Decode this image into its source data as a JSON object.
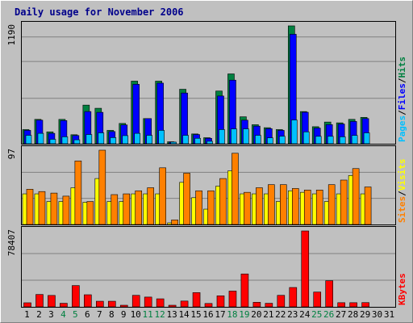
{
  "chart_data": {
    "title": "Daily usage for November 2006",
    "type": "bar",
    "days": [
      "1",
      "2",
      "3",
      "4",
      "5",
      "6",
      "7",
      "8",
      "9",
      "10",
      "11",
      "12",
      "13",
      "14",
      "15",
      "16",
      "17",
      "18",
      "19",
      "20",
      "21",
      "22",
      "23",
      "24",
      "25",
      "26",
      "27",
      "28",
      "29",
      "30",
      "31"
    ],
    "weekend_days": [
      "4",
      "5",
      "11",
      "12",
      "18",
      "19",
      "25",
      "26"
    ],
    "panels": [
      {
        "id": "hits-files-pages",
        "ymax_label": "1190",
        "ymax": 1190,
        "legend": [
          {
            "text": "Pages",
            "color": "#00c0ff"
          },
          {
            "text": "/",
            "color": "#000000"
          },
          {
            "text": "Files",
            "color": "#0000ff"
          },
          {
            "text": "/",
            "color": "#000000"
          },
          {
            "text": "Hits",
            "color": "#008040"
          }
        ],
        "series": [
          {
            "key": "hits",
            "color": "#008040",
            "values": [
              143,
              246,
              120,
              246,
              91,
              390,
              358,
              135,
              205,
              632,
              254,
              632,
              20,
              550,
              99,
              61,
              532,
              705,
              272,
              192,
              162,
              143,
              1190,
              325,
              172,
              219,
              211,
              246,
              266,
              0,
              0
            ]
          },
          {
            "key": "files",
            "color": "#0000ff",
            "values": [
              135,
              238,
              105,
              234,
              83,
              325,
              317,
              123,
              190,
              600,
              254,
              612,
              12,
              512,
              93,
              55,
              482,
              642,
              238,
              178,
              152,
              135,
              1105,
              318,
              158,
              193,
              199,
              225,
              254,
              0,
              0
            ]
          },
          {
            "key": "pages",
            "color": "#00c0ff",
            "values": [
              85,
              105,
              45,
              70,
              40,
              93,
              110,
              62,
              82,
              105,
              85,
              135,
              8,
              85,
              55,
              25,
              143,
              150,
              150,
              85,
              60,
              76,
              240,
              120,
              75,
              75,
              70,
              84,
              110,
              0,
              0
            ]
          }
        ]
      },
      {
        "id": "visits-sites",
        "ymax_label": "97",
        "ymax": 97,
        "legend": [
          {
            "text": "Sites",
            "color": "#ff8000"
          },
          {
            "text": "/",
            "color": "#000000"
          },
          {
            "text": "Visits",
            "color": "#ffff00"
          }
        ],
        "series": [
          {
            "key": "visits",
            "color": "#ffff00",
            "values": [
              40,
              40,
              30,
              30,
              48,
              29,
              60,
              30,
              30,
              40,
              40,
              40,
              2,
              55,
              35,
              20,
              50,
              70,
              40,
              40,
              40,
              30,
              44,
              42,
              40,
              30,
              40,
              64,
              40,
              0,
              0
            ]
          },
          {
            "key": "sites",
            "color": "#ff8000",
            "values": [
              46,
              43,
              41,
              37,
              83,
              30,
              97,
              39,
              40,
              44,
              48,
              74,
              6,
              67,
              44,
              44,
              60,
              93,
              42,
              48,
              52,
              52,
              47,
              45,
              45,
              52,
              58,
              73,
              49,
              0,
              0
            ]
          }
        ]
      },
      {
        "id": "kbytes",
        "ymax_label": "78407",
        "ymax": 78407,
        "legend": [
          {
            "text": "KBytes",
            "color": "#ff0000"
          }
        ],
        "series": [
          {
            "key": "kbytes",
            "color": "#ff0000",
            "values": [
              4200,
              12800,
              11800,
              3700,
              22000,
              12500,
              5800,
              5800,
              1600,
              11900,
              10100,
              8300,
              900,
              6000,
              14700,
              3500,
              11400,
              16300,
              34000,
              4700,
              3700,
              11900,
              20000,
              78407,
              15300,
              27000,
              4300,
              4300,
              4400,
              0,
              0
            ]
          }
        ]
      }
    ]
  }
}
